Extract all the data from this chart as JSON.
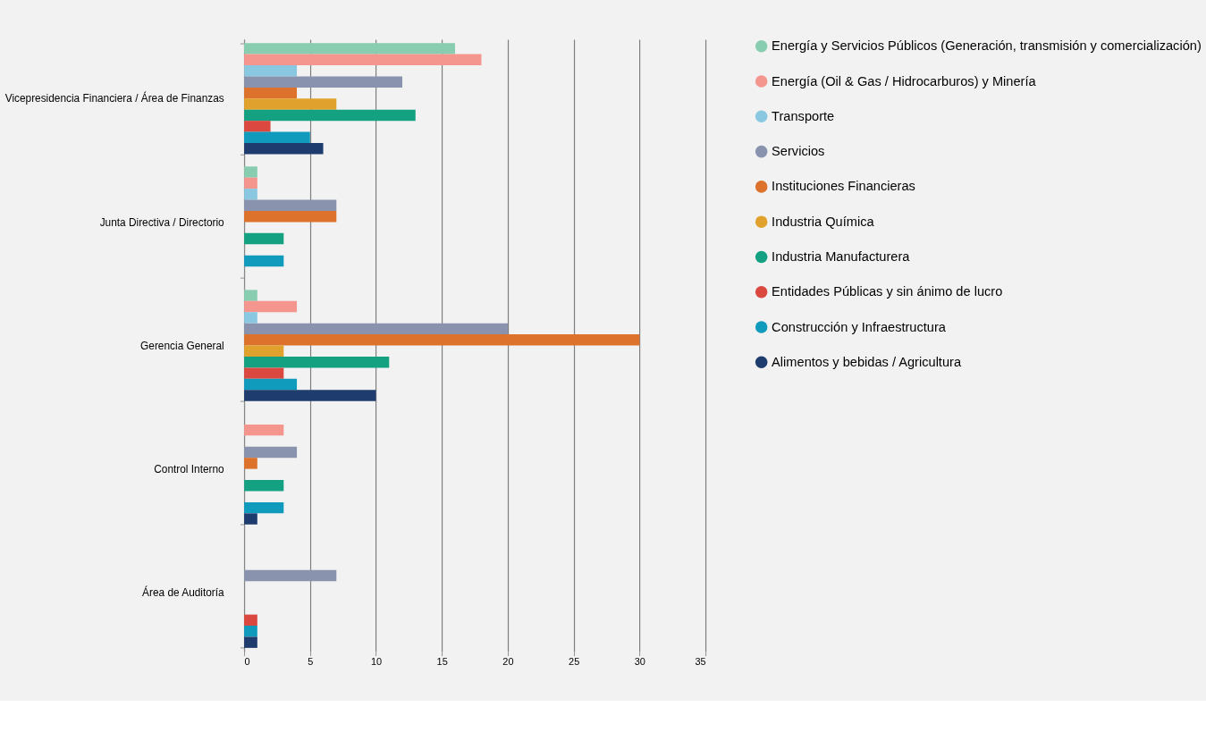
{
  "chart_data": {
    "type": "bar",
    "orientation": "horizontal",
    "categories": [
      "Vicepresidencia Financiera / Área de Finanzas",
      "Junta Directiva / Directorio",
      "Gerencia General",
      "Control Interno",
      "Área de Auditoría"
    ],
    "series": [
      {
        "name": "Energía y Servicios Públicos (Generación, transmisión y comercialización)",
        "color": "#88cdb0",
        "values": [
          16,
          1,
          1,
          null,
          null
        ]
      },
      {
        "name": "Energía (Oil & Gas / Hidrocarburos) y Minería",
        "color": "#f4958e",
        "values": [
          18,
          1,
          4,
          3,
          null
        ]
      },
      {
        "name": "Transporte",
        "color": "#8ac7e0",
        "values": [
          4,
          1,
          1,
          null,
          null
        ]
      },
      {
        "name": "Servicios",
        "color": "#8a93ad",
        "values": [
          12,
          7,
          20,
          4,
          7
        ]
      },
      {
        "name": "Instituciones Financieras",
        "color": "#dc722c",
        "values": [
          4,
          7,
          30,
          1,
          null
        ]
      },
      {
        "name": "Industria Química",
        "color": "#e0a22c",
        "values": [
          7,
          null,
          3,
          null,
          null
        ]
      },
      {
        "name": "Industria Manufacturera",
        "color": "#14a181",
        "values": [
          13,
          3,
          11,
          3,
          null
        ]
      },
      {
        "name": "Entidades Públicas y sin ánimo de lucro",
        "color": "#da4840",
        "values": [
          2,
          null,
          3,
          null,
          1
        ]
      },
      {
        "name": "Construcción y Infraestructura",
        "color": "#109bbd",
        "values": [
          5,
          3,
          4,
          3,
          1
        ]
      },
      {
        "name": "Alimentos y bebidas / Agricultura",
        "color": "#1f3c6e",
        "values": [
          6,
          null,
          10,
          1,
          1
        ]
      }
    ],
    "xlim": [
      0,
      35
    ],
    "xticks": [
      0,
      5,
      10,
      15,
      20,
      25,
      30,
      35
    ],
    "grid": "x",
    "legend": "right"
  }
}
